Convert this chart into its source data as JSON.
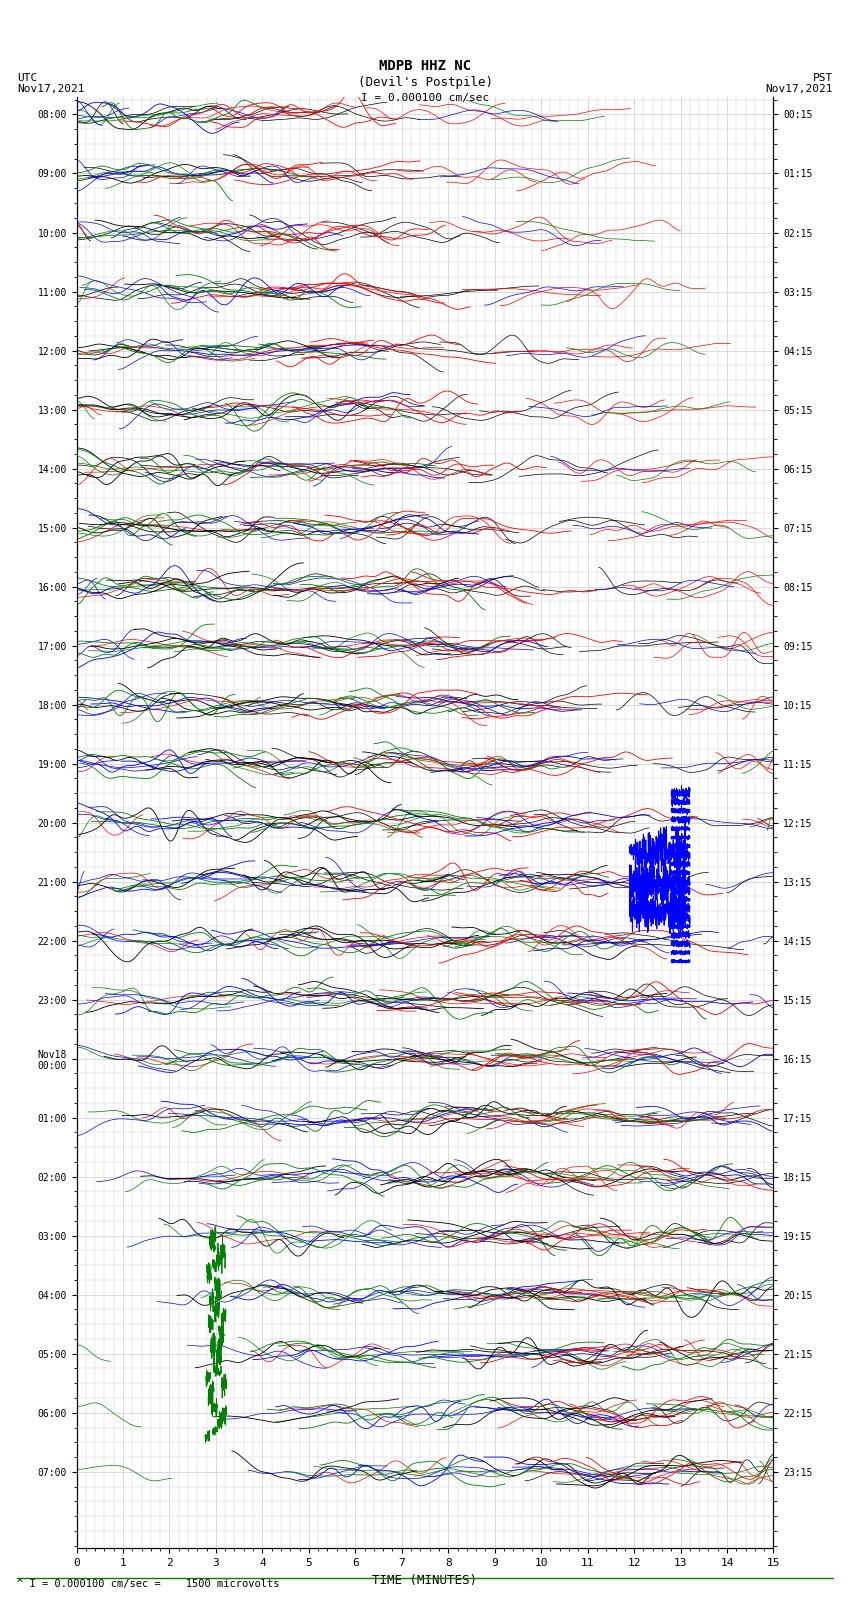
{
  "title_line1": "MDPB HHZ NC",
  "title_line2": "(Devil's Postpile)",
  "scale_label": "I = 0.000100 cm/sec",
  "footer_label": "^ I = 0.000100 cm/sec =    1500 microvolts",
  "left_label": "UTC\nNov17,2021",
  "right_label": "PST\nNov17,2021",
  "xlabel": "TIME (MINUTES)",
  "xmin": 0,
  "xmax": 15,
  "ytick_labels_left": [
    "08:00",
    "09:00",
    "10:00",
    "11:00",
    "12:00",
    "13:00",
    "14:00",
    "15:00",
    "16:00",
    "17:00",
    "18:00",
    "19:00",
    "20:00",
    "21:00",
    "22:00",
    "23:00",
    "Nov18\n00:00",
    "01:00",
    "02:00",
    "03:00",
    "04:00",
    "05:00",
    "06:00",
    "07:00"
  ],
  "ytick_labels_right": [
    "00:15",
    "01:15",
    "02:15",
    "03:15",
    "04:15",
    "05:15",
    "06:15",
    "07:15",
    "08:15",
    "09:15",
    "10:15",
    "11:15",
    "12:15",
    "13:15",
    "14:15",
    "15:15",
    "16:15",
    "17:15",
    "18:15",
    "19:15",
    "20:15",
    "21:15",
    "22:15",
    "23:15"
  ],
  "n_rows": 24,
  "trace_colors": [
    "black",
    "red",
    "green",
    "blue"
  ],
  "bg_color": "#ffffff",
  "grid_color": "#cccccc",
  "fig_width": 8.5,
  "fig_height": 16.13,
  "dpi": 100
}
